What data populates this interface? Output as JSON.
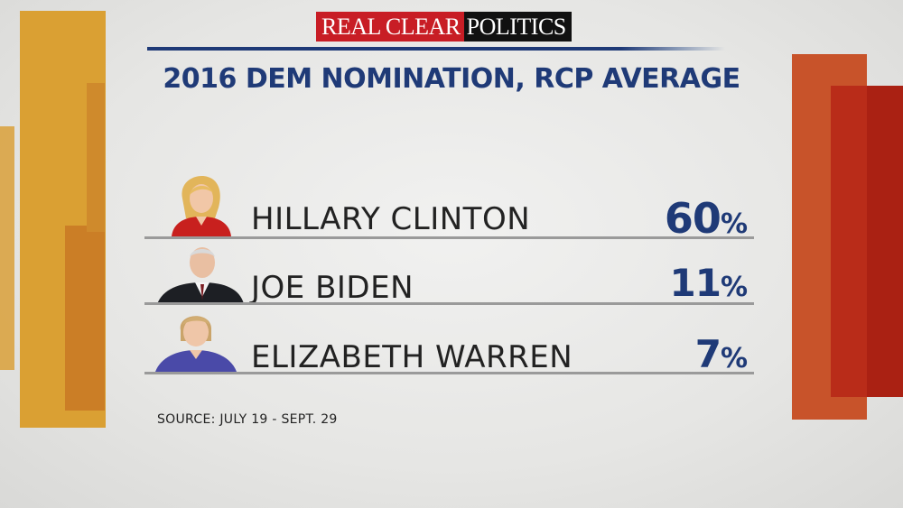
{
  "brand": {
    "part1": "REAL CLEAR",
    "part2": "POLITICS"
  },
  "chart_data": {
    "type": "table",
    "title": "2016 DEM NOMINATION, RCP AVERAGE",
    "rows": [
      {
        "name": "HILLARY CLINTON",
        "value": 60,
        "label": "60",
        "unit": "%"
      },
      {
        "name": "JOE BIDEN",
        "value": 11,
        "label": "11",
        "unit": "%"
      },
      {
        "name": "ELIZABETH WARREN",
        "value": 7,
        "label": "7",
        "unit": "%"
      }
    ],
    "source": "SOURCE: JULY 19 - SEPT. 29"
  },
  "colors": {
    "accent": "#1f3a77",
    "brand_red": "#c81d25",
    "left_bars": "#d99a2b",
    "right_bars": "#c2391c"
  }
}
